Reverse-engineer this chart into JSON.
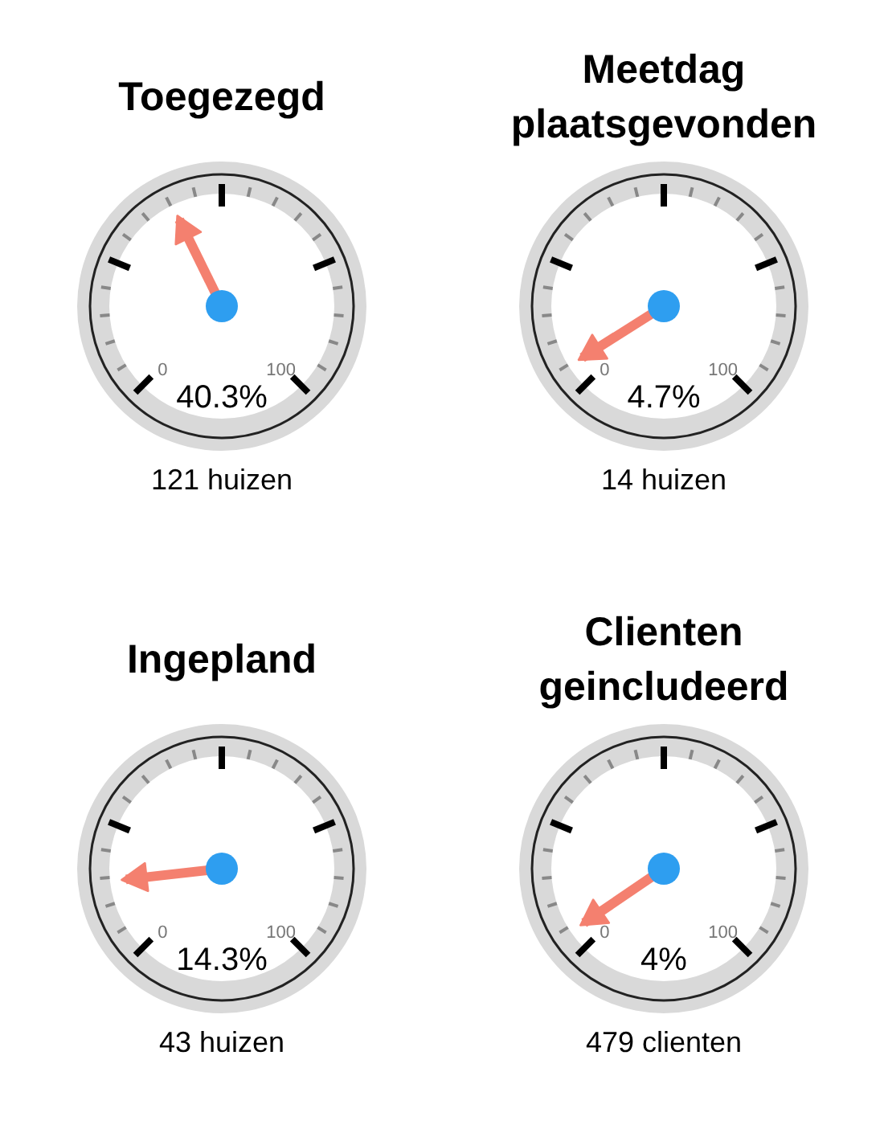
{
  "chart_data": [
    {
      "type": "other",
      "title": "Toegezegd",
      "values": [
        40.3
      ],
      "value_labels": [
        "40.3%"
      ],
      "annotations": [
        "0",
        "100",
        "121 huizen"
      ]
    },
    {
      "type": "other",
      "title": "Meetdag\nplaatsgevonden",
      "values": [
        4.7
      ],
      "value_labels": [
        "4.7%"
      ],
      "annotations": [
        "0",
        "100",
        "14 huizen"
      ]
    },
    {
      "type": "other",
      "title": "Ingepland",
      "values": [
        14.3
      ],
      "value_labels": [
        "14.3%"
      ],
      "annotations": [
        "0",
        "100",
        "43 huizen"
      ]
    },
    {
      "type": "other",
      "title": "Clienten\ngeincludeerd",
      "values": [
        4
      ],
      "value_labels": [
        "4%"
      ],
      "annotations": [
        "0",
        "100",
        "479 clienten"
      ]
    }
  ]
}
